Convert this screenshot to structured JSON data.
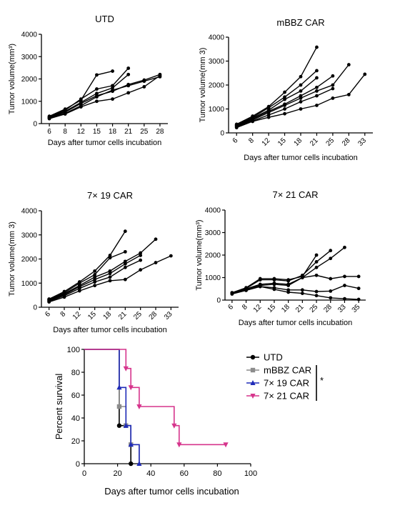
{
  "chart_data": [
    {
      "type": "line",
      "title": "UTD",
      "xlabel": "Days after tumor cells incubation",
      "ylabel": "Tumor volume(mm³)",
      "categories": [
        "6",
        "8",
        "12",
        "15",
        "18",
        "21",
        "25",
        "28"
      ],
      "ylim": [
        0,
        4000
      ],
      "yticks": [
        "0",
        "1000",
        "2000",
        "3000",
        "4000"
      ],
      "series": [
        {
          "values": [
            330,
            650,
            1050,
            2180,
            2350,
            null,
            null,
            null
          ]
        },
        {
          "values": [
            300,
            600,
            1100,
            1550,
            1700,
            2480,
            null,
            null
          ]
        },
        {
          "values": [
            280,
            550,
            950,
            1350,
            1600,
            2200,
            null,
            null
          ]
        },
        {
          "values": [
            260,
            520,
            900,
            1250,
            1450,
            1750,
            1950,
            2200
          ]
        },
        {
          "values": [
            240,
            460,
            800,
            1200,
            1500,
            1700,
            1900,
            2100
          ]
        },
        {
          "values": [
            220,
            430,
            750,
            1000,
            1100,
            1380,
            1650,
            2150
          ]
        }
      ]
    },
    {
      "type": "line",
      "title": "mBBZ CAR",
      "xlabel": "Days after tumor cells incubation",
      "ylabel": "Tumor volume(mm 3)",
      "categories": [
        "6",
        "8",
        "12",
        "15",
        "18",
        "21",
        "25",
        "28",
        "33"
      ],
      "ylim": [
        0,
        4000
      ],
      "yticks": [
        "0",
        "1000",
        "2000",
        "3000",
        "4000"
      ],
      "series": [
        {
          "values": [
            360,
            700,
            1100,
            1700,
            2350,
            3580,
            null,
            null,
            null
          ]
        },
        {
          "values": [
            340,
            650,
            1050,
            1500,
            2000,
            2600,
            null,
            null,
            null
          ]
        },
        {
          "values": [
            320,
            620,
            950,
            1400,
            1750,
            2300,
            null,
            null,
            null
          ]
        },
        {
          "values": [
            300,
            580,
            900,
            1200,
            1550,
            1900,
            2380,
            null,
            null
          ]
        },
        {
          "values": [
            280,
            540,
            850,
            1150,
            1450,
            1750,
            2000,
            2850,
            null
          ]
        },
        {
          "values": [
            250,
            500,
            750,
            1000,
            1300,
            1550,
            1850,
            null,
            null
          ]
        },
        {
          "values": [
            220,
            480,
            650,
            800,
            1000,
            1150,
            1450,
            1600,
            2450
          ]
        }
      ]
    },
    {
      "type": "line",
      "title": "7× 19 CAR",
      "xlabel": "Days after tumor cells incubation",
      "ylabel": "Tumor volume(mm 3)",
      "categories": [
        "6",
        "8",
        "12",
        "15",
        "18",
        "21",
        "25",
        "28",
        "33"
      ],
      "ylim": [
        0,
        4000
      ],
      "yticks": [
        "0",
        "1000",
        "2000",
        "3000",
        "4000"
      ],
      "series": [
        {
          "values": [
            340,
            650,
            1050,
            1500,
            2150,
            3150,
            null,
            null,
            null
          ]
        },
        {
          "values": [
            320,
            600,
            1000,
            1350,
            2050,
            2300,
            null,
            null,
            null
          ]
        },
        {
          "values": [
            300,
            560,
            900,
            1250,
            1500,
            1900,
            2250,
            2820,
            null
          ]
        },
        {
          "values": [
            280,
            520,
            850,
            1150,
            1400,
            1800,
            2150,
            null,
            null
          ]
        },
        {
          "values": [
            250,
            480,
            780,
            1050,
            1250,
            1650,
            1950,
            null,
            null
          ]
        },
        {
          "values": [
            220,
            420,
            680,
            900,
            1100,
            1150,
            1550,
            1850,
            2130
          ]
        }
      ]
    },
    {
      "type": "line",
      "title": "7× 21 CAR",
      "xlabel": "Days after tumor cells incubation",
      "ylabel": "Tumor volume(mm³)",
      "categories": [
        "6",
        "8",
        "12",
        "15",
        "18",
        "21",
        "25",
        "28",
        "33",
        "35"
      ],
      "ylim": [
        0,
        4000
      ],
      "yticks": [
        "0",
        "1000",
        "2000",
        "3000",
        "4000"
      ],
      "series": [
        {
          "values": [
            330,
            550,
            950,
            950,
            900,
            1050,
            2000,
            null,
            null,
            null
          ]
        },
        {
          "values": [
            320,
            520,
            900,
            900,
            850,
            1100,
            1700,
            2200,
            null,
            null
          ]
        },
        {
          "values": [
            300,
            500,
            700,
            750,
            700,
            1000,
            1450,
            1850,
            2340,
            null
          ]
        },
        {
          "values": [
            290,
            480,
            650,
            700,
            650,
            1000,
            1100,
            950,
            1050,
            1050
          ]
        },
        {
          "values": [
            280,
            460,
            600,
            550,
            450,
            450,
            380,
            400,
            650,
            520
          ]
        },
        {
          "values": [
            270,
            430,
            600,
            480,
            350,
            300,
            200,
            100,
            60,
            30
          ]
        }
      ]
    },
    {
      "type": "line",
      "xlabel": "Days after tumor cells incubation",
      "ylabel": "Percent survival",
      "xlim": [
        0,
        100
      ],
      "ylim": [
        0,
        100
      ],
      "xticks": [
        "0",
        "20",
        "40",
        "60",
        "80",
        "100"
      ],
      "yticks": [
        "0",
        "20",
        "40",
        "60",
        "80",
        "100"
      ],
      "legend_position": "right",
      "significance": "*",
      "series": [
        {
          "name": "UTD",
          "color": "#000000",
          "marker": "circle",
          "steps": [
            [
              0,
              100
            ],
            [
              21,
              100
            ],
            [
              21,
              33.3
            ],
            [
              28,
              33.3
            ],
            [
              28,
              0
            ]
          ],
          "points": [
            [
              21,
              33.3
            ],
            [
              28,
              0
            ]
          ]
        },
        {
          "name": "mBBZ CAR",
          "color": "#8c8c8c",
          "marker": "square",
          "steps": [
            [
              0,
              100
            ],
            [
              21,
              100
            ],
            [
              21,
              50
            ],
            [
              25,
              50
            ],
            [
              25,
              33.3
            ],
            [
              28,
              33.3
            ],
            [
              28,
              16.7
            ],
            [
              33,
              16.7
            ],
            [
              33,
              0
            ]
          ],
          "points": [
            [
              21,
              50
            ],
            [
              25,
              33.3
            ],
            [
              28,
              16.7
            ]
          ]
        },
        {
          "name": "7× 19 CAR",
          "color": "#1f2bb8",
          "marker": "triangle-up",
          "steps": [
            [
              0,
              100
            ],
            [
              21,
              100
            ],
            [
              21,
              66.7
            ],
            [
              25,
              66.7
            ],
            [
              25,
              33.3
            ],
            [
              28,
              33.3
            ],
            [
              28,
              16.7
            ],
            [
              33,
              16.7
            ],
            [
              33,
              0
            ]
          ],
          "points": [
            [
              21,
              66.7
            ],
            [
              25,
              33.3
            ],
            [
              28,
              16.7
            ],
            [
              33,
              0
            ]
          ]
        },
        {
          "name": "7× 21 CAR",
          "color": "#d6348c",
          "marker": "triangle-down",
          "steps": [
            [
              0,
              100
            ],
            [
              25,
              100
            ],
            [
              25,
              83.3
            ],
            [
              28,
              83.3
            ],
            [
              28,
              66.7
            ],
            [
              33,
              66.7
            ],
            [
              33,
              50
            ],
            [
              54,
              50
            ],
            [
              54,
              33.3
            ],
            [
              57,
              33.3
            ],
            [
              57,
              16.7
            ],
            [
              85,
              16.7
            ]
          ],
          "points": [
            [
              25,
              83.3
            ],
            [
              28,
              66.7
            ],
            [
              33,
              50
            ],
            [
              54,
              33.3
            ],
            [
              57,
              16.7
            ],
            [
              85,
              16.7
            ]
          ]
        }
      ]
    }
  ]
}
